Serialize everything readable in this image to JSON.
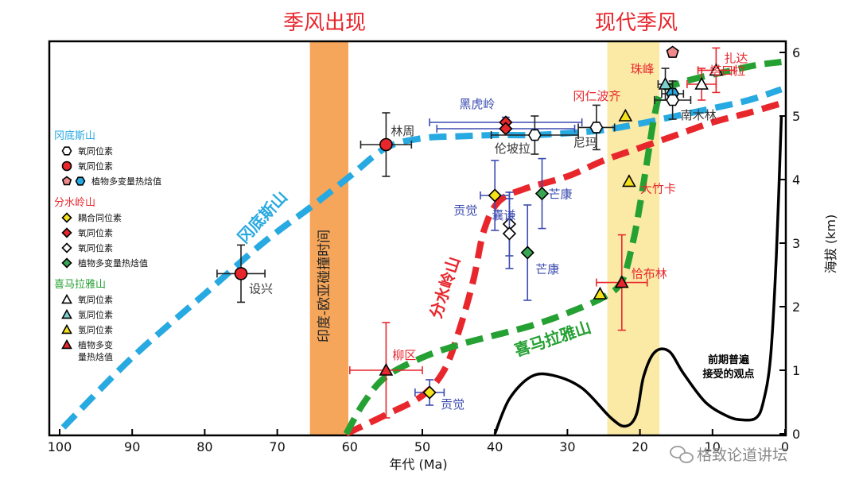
{
  "chart_data": {
    "type": "line",
    "title_left": "季风出现",
    "title_right": "现代季风",
    "xlabel": "年代 (Ma)",
    "ylabel": "海拔 (km)",
    "xlim": [
      100,
      0
    ],
    "ylim": [
      0,
      6.2
    ],
    "x_ticks": [
      "100",
      "90",
      "80",
      "70",
      "60",
      "50",
      "40",
      "30",
      "20",
      "10",
      "0"
    ],
    "x_tick_values": [
      100,
      90,
      80,
      70,
      60,
      50,
      40,
      30,
      20,
      10,
      0
    ],
    "y_ticks": [
      "0",
      "1",
      "2",
      "3",
      "4",
      "5",
      "6"
    ],
    "y_tick_values": [
      0,
      1,
      2,
      3,
      4,
      5,
      6
    ],
    "bands": [
      {
        "label": "印度-欧亚碰撞时间",
        "x_from": 65.5,
        "x_to": 60.2,
        "color": "#f6a65a"
      },
      {
        "label": "",
        "x_from": 24.5,
        "x_to": 17.3,
        "color": "#fbeaa6"
      }
    ],
    "series": [
      {
        "name": "冈底斯山",
        "color": "#27a9e1",
        "style": "dashed",
        "x": [
          99.5,
          90,
          80,
          72,
          65,
          60,
          55,
          50,
          45,
          40,
          35,
          30,
          25,
          20,
          15,
          10,
          5,
          0.5
        ],
        "y": [
          0.1,
          1.2,
          2.2,
          3.0,
          3.6,
          4.05,
          4.5,
          4.65,
          4.68,
          4.7,
          4.7,
          4.73,
          4.78,
          4.88,
          5.0,
          5.12,
          5.25,
          5.42
        ]
      },
      {
        "name": "分水岭山",
        "color": "#e8272d",
        "style": "dashed",
        "x": [
          60.5,
          55,
          50,
          47,
          45,
          43,
          41.5,
          39.5,
          36,
          30,
          25,
          20,
          15,
          10,
          5,
          0.5
        ],
        "y": [
          0.0,
          0.3,
          0.6,
          1.0,
          1.6,
          2.4,
          3.2,
          3.65,
          3.85,
          4.05,
          4.3,
          4.5,
          4.7,
          4.9,
          5.05,
          5.2
        ]
      },
      {
        "name": "喜马拉雅山",
        "color": "#25a033",
        "style": "dashed",
        "x": [
          60.5,
          58,
          55,
          50,
          45,
          40,
          35,
          30,
          25,
          22.5,
          21,
          20,
          19,
          18,
          17,
          15,
          12,
          8,
          4,
          0.5
        ],
        "y": [
          0.0,
          0.5,
          0.9,
          1.2,
          1.4,
          1.55,
          1.7,
          1.9,
          2.15,
          2.4,
          3.0,
          3.6,
          4.3,
          5.0,
          5.4,
          5.5,
          5.6,
          5.7,
          5.8,
          5.85
        ]
      },
      {
        "name": "前期普遍接受的观点",
        "color": "#000000",
        "style": "solid",
        "x": [
          40,
          38,
          35,
          32,
          28,
          24,
          22,
          20.5,
          19.5,
          18,
          16,
          14,
          11,
          8,
          6,
          4,
          3,
          2,
          1.2,
          0.5
        ],
        "y": [
          0.0,
          0.55,
          0.9,
          0.92,
          0.72,
          0.25,
          0.12,
          0.3,
          0.9,
          1.28,
          1.3,
          0.95,
          0.5,
          0.28,
          0.22,
          0.25,
          0.5,
          1.2,
          2.8,
          5.0
        ]
      }
    ],
    "curve_labels": [
      {
        "text": "冈底斯山",
        "color": "#27a9e1"
      },
      {
        "text": "分水岭山",
        "color": "#e8272d"
      },
      {
        "text": "喜马拉雅山",
        "color": "#25a033"
      },
      {
        "text": "前期普遍",
        "color": "#000000"
      },
      {
        "text": "接受的观点",
        "color": "#000000"
      }
    ],
    "points": [
      {
        "label": "设兴",
        "x": 75,
        "y": 2.52,
        "xerr": 3.3,
        "yerr": 0.45,
        "shape": "circle",
        "fill": "#e8272d",
        "label_color": "#333333",
        "err_color": "#222222"
      },
      {
        "label": "林周",
        "x": 55,
        "y": 4.55,
        "xerr": 3.5,
        "yerr": 0.5,
        "shape": "circle",
        "fill": "#e8272d",
        "label_color": "#333333",
        "err_color": "#222222"
      },
      {
        "label": "黑虎岭",
        "x": 38.5,
        "y": 4.9,
        "xerr": 10.5,
        "yerr": 0.08,
        "shape": "diamond",
        "fill": "#e8272d",
        "label_color": "#3b4bb0",
        "err_color": "#3b4bb0"
      },
      {
        "label": "",
        "x": 38.5,
        "y": 4.8,
        "xerr": 9.5,
        "yerr": 0.0,
        "shape": "diamond",
        "fill": "#e8272d",
        "label_color": "#3b4bb0",
        "err_color": "#3b4bb0"
      },
      {
        "label": "伦坡拉",
        "x": 34.5,
        "y": 4.7,
        "xerr": 6.0,
        "yerr": 0.3,
        "shape": "hexagon",
        "fill": "#ffffff",
        "label_color": "#333333",
        "err_color": "#222222"
      },
      {
        "label": "尼玛",
        "x": 26,
        "y": 4.82,
        "xerr": 2.5,
        "yerr": 0.35,
        "shape": "hexagon",
        "fill": "#ffffff",
        "label_color": "#333333",
        "err_color": "#222222"
      },
      {
        "label": "贡觉",
        "x": 40,
        "y": 3.75,
        "xerr": 2.0,
        "yerr": 0.55,
        "shape": "diamond",
        "fill": "#f5e21b",
        "label_color": "#3b4bb0",
        "err_color": "#3b4bb0"
      },
      {
        "label": "芒康",
        "x": 33.5,
        "y": 3.78,
        "xerr": 0.0,
        "yerr": 0.55,
        "shape": "diamond",
        "fill": "#3aa655",
        "label_color": "#3b4bb0",
        "err_color": "#3b4bb0"
      },
      {
        "label": "",
        "x": 38,
        "y": 3.3,
        "xerr": 0.0,
        "yerr": 0.5,
        "shape": "diamond",
        "fill": "#ffffff",
        "label_color": "#3b4bb0",
        "err_color": "#3b4bb0"
      },
      {
        "label": "囊谦",
        "x": 38,
        "y": 3.15,
        "xerr": 0.0,
        "yerr": 0.55,
        "shape": "diamond",
        "fill": "#ffffff",
        "label_color": "#3b4bb0",
        "err_color": "#3b4bb0"
      },
      {
        "label": "芒康",
        "x": 35.5,
        "y": 2.85,
        "xerr": 0.0,
        "yerr": 0.75,
        "shape": "diamond",
        "fill": "#3aa655",
        "label_color": "#3b4bb0",
        "err_color": "#3b4bb0"
      },
      {
        "label": "柳区",
        "x": 55,
        "y": 1.0,
        "xerr": 5.0,
        "yerr": 0.75,
        "shape": "triangle",
        "fill": "#e8272d",
        "label_color": "#e8272d",
        "err_color": "#e8272d"
      },
      {
        "label": "贡觉",
        "x": 49,
        "y": 0.65,
        "xerr": 2.0,
        "yerr": 0.2,
        "shape": "diamond",
        "fill": "#f5e21b",
        "label_color": "#3b4bb0",
        "err_color": "#3b4bb0"
      },
      {
        "label": "恰布林",
        "x": 22.5,
        "y": 2.38,
        "xerr": 3.5,
        "yerr": 0.75,
        "shape": "triangle",
        "fill": "#e8272d",
        "label_color": "#e8272d",
        "err_color": "#e8272d"
      },
      {
        "label": "",
        "x": 25.5,
        "y": 2.2,
        "xerr": 0.0,
        "yerr": 0.0,
        "shape": "triangle",
        "fill": "#f5e21b",
        "label_color": "#333333",
        "err_color": "#222222"
      },
      {
        "label": "大竹卡",
        "x": 21.5,
        "y": 3.97,
        "xerr": 0.0,
        "yerr": 0.0,
        "shape": "triangle",
        "fill": "#f5e21b",
        "label_color": "#e8272d",
        "err_color": "#222222"
      },
      {
        "label": "冈仁波齐",
        "x": 22,
        "y": 5.0,
        "xerr": 0.0,
        "yerr": 0.0,
        "shape": "triangle",
        "fill": "#f5e21b",
        "label_color": "#e8272d",
        "err_color": "#222222"
      },
      {
        "label": "珠峰",
        "x": 16.5,
        "y": 5.5,
        "xerr": 1.0,
        "yerr": 0.25,
        "shape": "triangle",
        "fill": "#7ecfd0",
        "label_color": "#e8272d",
        "err_color": "#222222"
      },
      {
        "label": "",
        "x": 15.5,
        "y": 6.0,
        "xerr": 0.0,
        "yerr": 0.0,
        "shape": "pentagon",
        "fill": "#f08a8a",
        "label_color": "#333333",
        "err_color": "#222222"
      },
      {
        "label": "",
        "x": 15.5,
        "y": 5.35,
        "xerr": 1.5,
        "yerr": 0.0,
        "shape": "hexagon",
        "fill": "#27a9e1",
        "label_color": "#333333",
        "err_color": "#222222"
      },
      {
        "label": "南木林",
        "x": 15.5,
        "y": 5.25,
        "xerr": 2.5,
        "yerr": 0.3,
        "shape": "hexagon",
        "fill": "#ffffff",
        "label_color": "#333333",
        "err_color": "#222222"
      },
      {
        "label": "扎达",
        "x": 9.5,
        "y": 5.72,
        "xerr": 2.5,
        "yerr": 0.35,
        "shape": "triangle",
        "fill": "#ffffff",
        "label_color": "#e8272d",
        "err_color": "#e8272d"
      },
      {
        "label": "塔口拉",
        "x": 11.5,
        "y": 5.5,
        "xerr": 2.0,
        "yerr": 0.25,
        "shape": "triangle",
        "fill": "#ffffff",
        "label_color": "#e8272d",
        "err_color": "#e8272d"
      }
    ]
  },
  "legend": {
    "groups": [
      {
        "title": "冈底斯山",
        "color": "#27a9e1",
        "items": [
          {
            "label": "氧同位素",
            "shapes": [
              {
                "shape": "hexagon",
                "fill": "#ffffff"
              }
            ]
          },
          {
            "label": "氧同位素",
            "shapes": [
              {
                "shape": "circle",
                "fill": "#e8272d"
              }
            ]
          },
          {
            "label": "植物多变量热焓值",
            "shapes": [
              {
                "shape": "pentagon",
                "fill": "#f08a8a"
              },
              {
                "shape": "hexagon",
                "fill": "#27a9e1"
              }
            ]
          }
        ]
      },
      {
        "title": "分水岭山",
        "color": "#e8272d",
        "items": [
          {
            "label": "耦合同位素",
            "shapes": [
              {
                "shape": "diamond",
                "fill": "#f5e21b"
              }
            ]
          },
          {
            "label": "氧同位素",
            "shapes": [
              {
                "shape": "diamond",
                "fill": "#e8272d"
              }
            ]
          },
          {
            "label": "氧同位素",
            "shapes": [
              {
                "shape": "diamond",
                "fill": "#ffffff"
              }
            ]
          },
          {
            "label": "植物多变量热焓值",
            "shapes": [
              {
                "shape": "diamond",
                "fill": "#3aa655"
              }
            ]
          }
        ]
      },
      {
        "title": "喜马拉雅山",
        "color": "#25a033",
        "items": [
          {
            "label": "氧同位素",
            "shapes": [
              {
                "shape": "triangle",
                "fill": "#ffffff"
              }
            ]
          },
          {
            "label": "氢同位素",
            "shapes": [
              {
                "shape": "triangle",
                "fill": "#7ecfd0"
              }
            ]
          },
          {
            "label": "氢同位素",
            "shapes": [
              {
                "shape": "triangle",
                "fill": "#f5e21b"
              }
            ]
          },
          {
            "label": "植物多变",
            "label2": "量热焓值",
            "shapes": [
              {
                "shape": "triangle",
                "fill": "#e8272d"
              }
            ]
          }
        ]
      }
    ]
  },
  "watermark": {
    "text": "格致论道讲坛"
  }
}
